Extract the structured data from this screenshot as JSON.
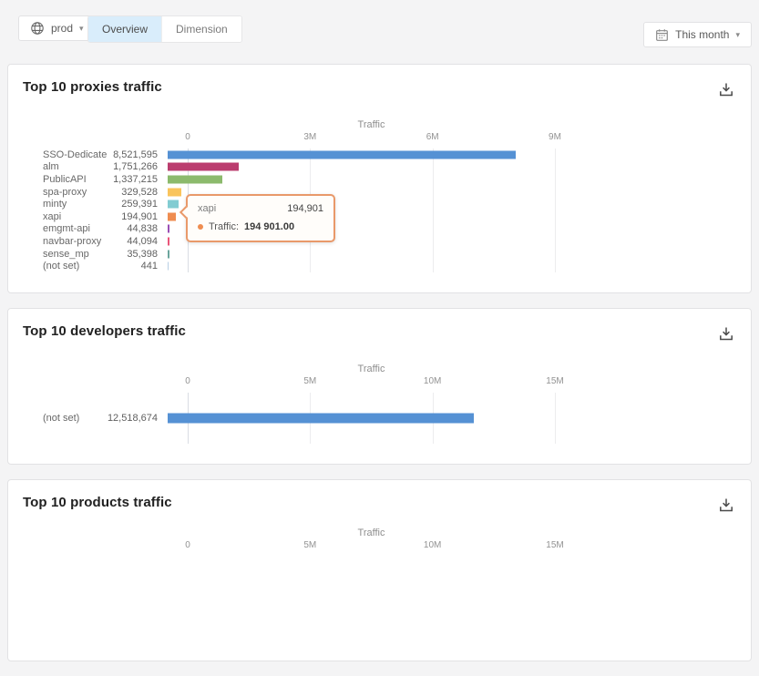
{
  "topbar": {
    "environment": {
      "label": "prod"
    },
    "tabs": [
      {
        "label": "Overview",
        "active": true
      },
      {
        "label": "Dimension",
        "active": false
      }
    ],
    "date_range": {
      "label": "This month"
    }
  },
  "icons": {
    "caret_down": "▾",
    "environment_icon": "globe-icon",
    "date_icon": "calendar-icon",
    "export_icon": "download-icon"
  },
  "tooltip": {
    "name": "xapi",
    "value": "194,901",
    "series_label": "Traffic:",
    "series_value": "194 901.00",
    "accent": "#ef8d51",
    "border": "#e9996a"
  },
  "chart_data": [
    {
      "type": "bar",
      "orientation": "horizontal",
      "title": "Top 10 proxies traffic",
      "xlabel": "Traffic",
      "xlim": [
        0,
        9000000
      ],
      "grid": true,
      "ticks": [
        {
          "label": "0",
          "value": 0
        },
        {
          "label": "3M",
          "value": 3000000
        },
        {
          "label": "6M",
          "value": 6000000
        },
        {
          "label": "9M",
          "value": 9000000
        }
      ],
      "categories": [
        "SSO-Dedicated-U...",
        "alm",
        "PublicAPI",
        "spa-proxy",
        "minty",
        "xapi",
        "emgmt-api",
        "navbar-proxy",
        "sense_mp",
        "(not set)"
      ],
      "values": [
        8521595,
        1751266,
        1337215,
        329528,
        259391,
        194901,
        44838,
        44094,
        35398,
        441
      ],
      "value_labels": [
        "8,521,595",
        "1,751,266",
        "1,337,215",
        "329,528",
        "259,391",
        "194,901",
        "44,838",
        "44,094",
        "35,398",
        "441"
      ],
      "colors": [
        "#5591d4",
        "#bb3d6e",
        "#8cba6c",
        "#f9c45c",
        "#82ccd2",
        "#ef8d51",
        "#9a4fb5",
        "#ea5579",
        "#6ba59d",
        "#b8cfe5"
      ]
    },
    {
      "type": "bar",
      "orientation": "horizontal",
      "title": "Top 10 developers traffic",
      "xlabel": "Traffic",
      "xlim": [
        0,
        15000000
      ],
      "grid": true,
      "ticks": [
        {
          "label": "0",
          "value": 0
        },
        {
          "label": "5M",
          "value": 5000000
        },
        {
          "label": "10M",
          "value": 10000000
        },
        {
          "label": "15M",
          "value": 15000000
        }
      ],
      "categories": [
        "(not set)"
      ],
      "values": [
        12518674
      ],
      "value_labels": [
        "12,518,674"
      ],
      "colors": [
        "#5591d4"
      ]
    },
    {
      "type": "bar",
      "orientation": "horizontal",
      "title": "Top 10 products traffic",
      "xlabel": "Traffic",
      "xlim": [
        0,
        15000000
      ],
      "grid": true,
      "ticks": [
        {
          "label": "0",
          "value": 0
        },
        {
          "label": "5M",
          "value": 5000000
        },
        {
          "label": "10M",
          "value": 10000000
        },
        {
          "label": "15M",
          "value": 15000000
        }
      ],
      "categories": [],
      "values": [],
      "value_labels": [],
      "colors": []
    }
  ]
}
